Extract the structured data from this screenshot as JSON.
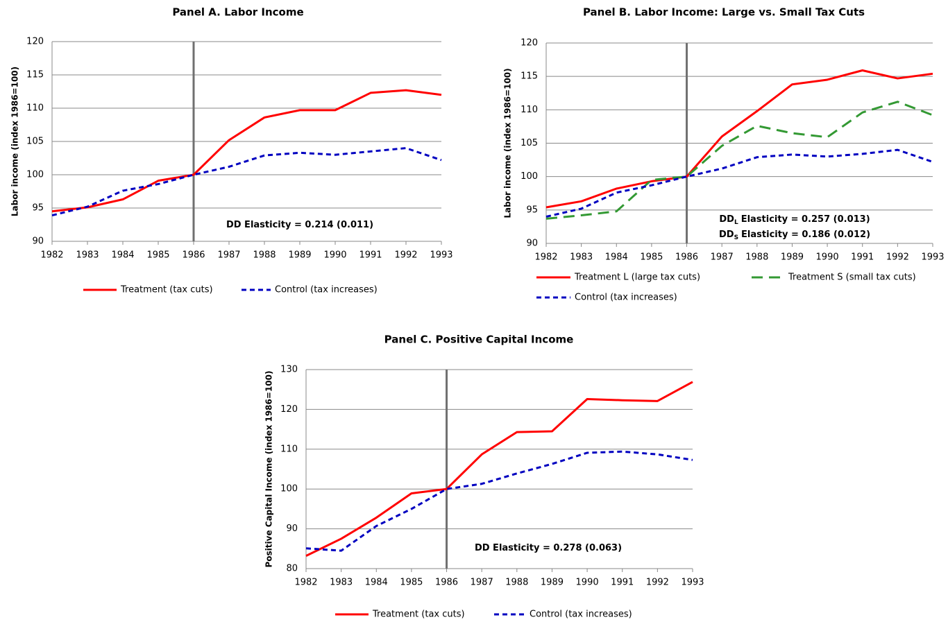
{
  "chart_data": [
    {
      "type": "line",
      "title": "Panel A. Labor Income",
      "y_label": "Labor  income (index 1986=100)",
      "x": [
        1982,
        1983,
        1984,
        1985,
        1986,
        1987,
        1988,
        1989,
        1990,
        1991,
        1992,
        1993
      ],
      "xlim": [
        1982,
        1993
      ],
      "xticks": [
        1982,
        1983,
        1984,
        1985,
        1986,
        1987,
        1988,
        1989,
        1990,
        1991,
        1992,
        1993
      ],
      "ylim": [
        90,
        120
      ],
      "yticks": [
        90,
        95,
        100,
        105,
        110,
        115,
        120
      ],
      "grid": true,
      "vline": 1986,
      "series": [
        {
          "name": "Treatment (tax cuts)",
          "color": "#ff0000",
          "dash": "solid",
          "values": [
            94.5,
            95.1,
            96.3,
            99.1,
            100,
            105.2,
            108.6,
            109.7,
            109.7,
            112.3,
            112.7,
            112.0
          ]
        },
        {
          "name": "Control (tax increases)",
          "color": "#0000c0",
          "dash": "dashed",
          "values": [
            93.9,
            95.2,
            97.6,
            98.6,
            100,
            101.2,
            102.9,
            103.3,
            103.0,
            103.5,
            104.0,
            102.2
          ]
        }
      ],
      "annotations": [
        {
          "text": "DD Elasticity = 0.214 (0.011)"
        }
      ]
    },
    {
      "type": "line",
      "title": "Panel B. Labor Income: Large vs. Small Tax Cuts",
      "y_label": "Labor  income (index 1986=100)",
      "x": [
        1982,
        1983,
        1984,
        1985,
        1986,
        1987,
        1988,
        1989,
        1990,
        1991,
        1992,
        1993
      ],
      "xlim": [
        1982,
        1993
      ],
      "xticks": [
        1982,
        1983,
        1984,
        1985,
        1986,
        1987,
        1988,
        1989,
        1990,
        1991,
        1992,
        1993
      ],
      "ylim": [
        90,
        120
      ],
      "yticks": [
        90,
        95,
        100,
        105,
        110,
        115,
        120
      ],
      "grid": true,
      "vline": 1986,
      "series": [
        {
          "name": "Treatment L (large tax cuts)",
          "color": "#ff0000",
          "dash": "solid",
          "values": [
            95.4,
            96.3,
            98.2,
            99.3,
            100,
            106.0,
            109.8,
            113.8,
            114.5,
            115.9,
            114.7,
            115.4
          ]
        },
        {
          "name": "Treatment S (small tax cuts)",
          "color": "#339933",
          "dash": "longdash",
          "values": [
            93.7,
            94.2,
            94.8,
            99.5,
            100,
            104.6,
            107.6,
            106.5,
            105.9,
            109.6,
            111.2,
            109.2
          ]
        },
        {
          "name": "Control (tax increases)",
          "color": "#0000c0",
          "dash": "dashed",
          "values": [
            94.0,
            95.2,
            97.6,
            98.7,
            100,
            101.2,
            102.9,
            103.3,
            103.0,
            103.4,
            104.0,
            102.2
          ]
        }
      ],
      "annotations": [
        {
          "text": "DD",
          "sub": "L",
          "tail": "Elasticity = 0.257 (0.013)"
        },
        {
          "text": "DD",
          "sub": "S",
          "tail": "Elasticity = 0.186 (0.012)"
        }
      ]
    },
    {
      "type": "line",
      "title": "Panel C. Positive Capital Income",
      "y_label": "Positive Capital Income (index 1986=100)",
      "x": [
        1982,
        1983,
        1984,
        1985,
        1986,
        1987,
        1988,
        1989,
        1990,
        1991,
        1992,
        1993
      ],
      "xlim": [
        1982,
        1993
      ],
      "xticks": [
        1982,
        1983,
        1984,
        1985,
        1986,
        1987,
        1988,
        1989,
        1990,
        1991,
        1992,
        1993
      ],
      "ylim": [
        80,
        130
      ],
      "yticks": [
        80,
        90,
        100,
        110,
        120,
        130
      ],
      "grid": true,
      "vline": 1986,
      "series": [
        {
          "name": "Treatment (tax cuts)",
          "color": "#ff0000",
          "dash": "solid",
          "values": [
            83.2,
            87.5,
            92.8,
            98.9,
            100,
            108.7,
            114.3,
            114.5,
            122.6,
            122.3,
            122.1,
            126.9
          ]
        },
        {
          "name": "Control (tax increases)",
          "color": "#0000c0",
          "dash": "dashed",
          "values": [
            85.1,
            84.5,
            90.7,
            95.0,
            100,
            101.3,
            103.9,
            106.3,
            109.1,
            109.4,
            108.7,
            107.3
          ]
        }
      ],
      "annotations": [
        {
          "text": "DD Elasticity = 0.278 (0.063)"
        }
      ]
    }
  ]
}
